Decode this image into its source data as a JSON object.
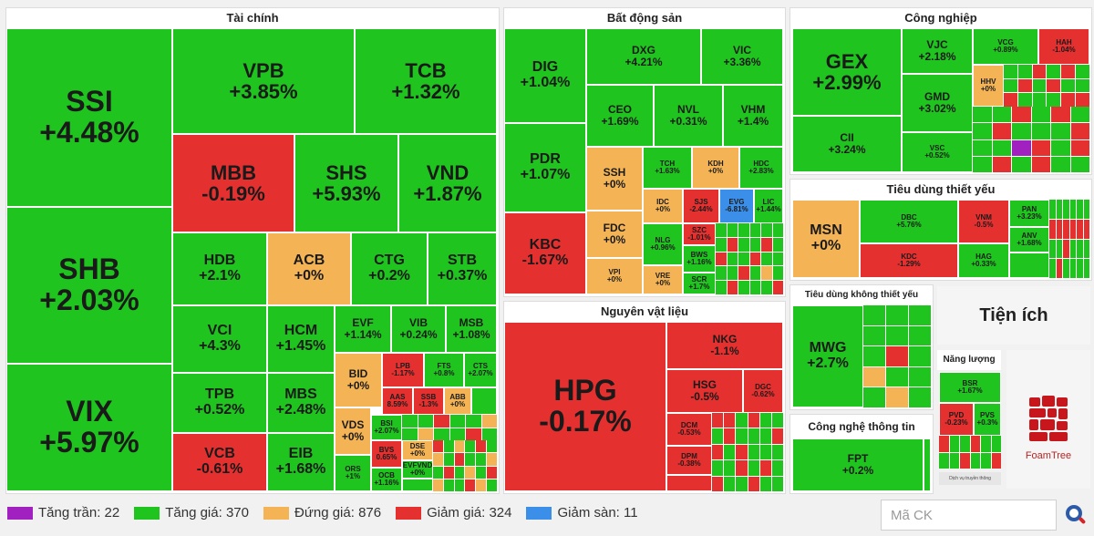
{
  "sectors": {
    "tai_chinh": "Tài chính",
    "bat_dong_san": "Bất động sản",
    "cong_nghiep": "Công nghiệp",
    "tieu_dung_thiet_yeu": "Tiêu dùng thiết yếu",
    "nguyen_vat_lieu": "Nguyên vật liệu",
    "tieu_dung_khong_thiet_yeu": "Tiêu dùng không thiết yếu",
    "cong_nghe_thong_tin": "Công nghệ thông tin",
    "tien_ich": "Tiện ích",
    "nang_luong": "Năng lượng"
  },
  "stocks": {
    "SSI": {
      "t": "SSI",
      "p": "+4.48%"
    },
    "SHB": {
      "t": "SHB",
      "p": "+2.03%"
    },
    "VIX": {
      "t": "VIX",
      "p": "+5.97%"
    },
    "VPB": {
      "t": "VPB",
      "p": "+3.85%"
    },
    "TCB": {
      "t": "TCB",
      "p": "+1.32%"
    },
    "MBB": {
      "t": "MBB",
      "p": "-0.19%"
    },
    "SHS": {
      "t": "SHS",
      "p": "+5.93%"
    },
    "VND": {
      "t": "VND",
      "p": "+1.87%"
    },
    "HDB": {
      "t": "HDB",
      "p": "+2.1%"
    },
    "ACB": {
      "t": "ACB",
      "p": "+0%"
    },
    "CTG": {
      "t": "CTG",
      "p": "+0.2%"
    },
    "STB": {
      "t": "STB",
      "p": "+0.37%"
    },
    "VCI": {
      "t": "VCI",
      "p": "+4.3%"
    },
    "HCM": {
      "t": "HCM",
      "p": "+1.45%"
    },
    "EVF": {
      "t": "EVF",
      "p": "+1.14%"
    },
    "VIB": {
      "t": "VIB",
      "p": "+0.24%"
    },
    "MSB": {
      "t": "MSB",
      "p": "+1.08%"
    },
    "TPB": {
      "t": "TPB",
      "p": "+0.52%"
    },
    "MBS": {
      "t": "MBS",
      "p": "+2.48%"
    },
    "BID": {
      "t": "BID",
      "p": "+0%"
    },
    "LPB": {
      "t": "LPB",
      "p": "-1.17%"
    },
    "FTS": {
      "t": "FTS",
      "p": "+0.8%"
    },
    "CTS": {
      "t": "CTS",
      "p": "+2.07%"
    },
    "VCB": {
      "t": "VCB",
      "p": "-0.61%"
    },
    "EIB": {
      "t": "EIB",
      "p": "+1.68%"
    },
    "VDS": {
      "t": "VDS",
      "p": "+0%"
    },
    "ORS": {
      "t": "ORS",
      "p": "+1%"
    },
    "AAS": {
      "t": "AAS",
      "p": "8.59%"
    },
    "SSB": {
      "t": "SSB",
      "p": "-1.3%"
    },
    "ABB": {
      "t": "ABB",
      "p": "+0%"
    },
    "BSI": {
      "t": "BSI",
      "p": "+2.07%"
    },
    "BVS": {
      "t": "BVS",
      "p": "0.65%"
    },
    "DSE": {
      "t": "DSE",
      "p": "+0%"
    },
    "OCB": {
      "t": "OCB",
      "p": "+1.16%"
    },
    "EVFVND": {
      "t": "EVFVND",
      "p": "+0%"
    },
    "DIG": {
      "t": "DIG",
      "p": "+1.04%"
    },
    "DXG": {
      "t": "DXG",
      "p": "+4.21%"
    },
    "VIC": {
      "t": "VIC",
      "p": "+3.36%"
    },
    "PDR": {
      "t": "PDR",
      "p": "+1.07%"
    },
    "CEO": {
      "t": "CEO",
      "p": "+1.69%"
    },
    "NVL": {
      "t": "NVL",
      "p": "+0.31%"
    },
    "VHM": {
      "t": "VHM",
      "p": "+1.4%"
    },
    "SSH": {
      "t": "SSH",
      "p": "+0%"
    },
    "TCH": {
      "t": "TCH",
      "p": "+1.63%"
    },
    "KDH": {
      "t": "KDH",
      "p": "+0%"
    },
    "HDC": {
      "t": "HDC",
      "p": "+2.83%"
    },
    "KBC": {
      "t": "KBC",
      "p": "-1.67%"
    },
    "FDC": {
      "t": "FDC",
      "p": "+0%"
    },
    "IDC": {
      "t": "IDC",
      "p": "+0%"
    },
    "SJS": {
      "t": "SJS",
      "p": "-2.44%"
    },
    "EVG": {
      "t": "EVG",
      "p": "-6.81%"
    },
    "LIC": {
      "t": "LIC",
      "p": "+1.44%"
    },
    "NLG": {
      "t": "NLG",
      "p": "+0.96%"
    },
    "SZC": {
      "t": "SZC",
      "p": "-1.01%"
    },
    "VPI": {
      "t": "VPI",
      "p": "+0%"
    },
    "VRE": {
      "t": "VRE",
      "p": "+0%"
    },
    "BWS": {
      "t": "BWS",
      "p": "+1.16%"
    },
    "SCR": {
      "t": "SCR",
      "p": "+1.7%"
    },
    "GEX": {
      "t": "GEX",
      "p": "+2.99%"
    },
    "VJC": {
      "t": "VJC",
      "p": "+2.18%"
    },
    "VCG": {
      "t": "VCG",
      "p": "+0.89%"
    },
    "HAH": {
      "t": "HAH",
      "p": "-1.04%"
    },
    "HHV": {
      "t": "HHV",
      "p": "+0%"
    },
    "GMD": {
      "t": "GMD",
      "p": "+3.02%"
    },
    "CII": {
      "t": "CII",
      "p": "+3.24%"
    },
    "VSC": {
      "t": "VSC",
      "p": "+0.52%"
    },
    "MSN": {
      "t": "MSN",
      "p": "+0%"
    },
    "DBC": {
      "t": "DBC",
      "p": "+5.76%"
    },
    "VNM": {
      "t": "VNM",
      "p": "-0.5%"
    },
    "PAN": {
      "t": "PAN",
      "p": "+3.23%"
    },
    "KDC": {
      "t": "KDC",
      "p": "-1.29%"
    },
    "HAG": {
      "t": "HAG",
      "p": "+0.33%"
    },
    "ANV": {
      "t": "ANV",
      "p": "+1.68%"
    },
    "HPG": {
      "t": "HPG",
      "p": "-0.17%"
    },
    "NKG": {
      "t": "NKG",
      "p": "-1.1%"
    },
    "HSG": {
      "t": "HSG",
      "p": "-0.5%"
    },
    "DGC": {
      "t": "DGC",
      "p": "-0.62%"
    },
    "DCM": {
      "t": "DCM",
      "p": "-0.53%"
    },
    "DPM": {
      "t": "DPM",
      "p": "-0.38%"
    },
    "MWG": {
      "t": "MWG",
      "p": "+2.7%"
    },
    "FPT": {
      "t": "FPT",
      "p": "+0.2%"
    },
    "BSR": {
      "t": "BSR",
      "p": "+1.67%"
    },
    "PVD": {
      "t": "PVD",
      "p": "-0.23%"
    },
    "PVS": {
      "t": "PVS",
      "p": "+0.3%"
    }
  },
  "extras": {
    "foamtree": "FoamTree",
    "dich_vu_truyen_thong": "Dịch vụ truyền thông"
  },
  "legend": {
    "ceiling": "Tăng trần: 22",
    "up": "Tăng giá: 370",
    "flat": "Đứng giá: 876",
    "down": "Giảm giá: 324",
    "floor": "Giảm sàn: 11"
  },
  "colors": {
    "ceiling": "#a020c0",
    "up": "#1fc41f",
    "flat": "#f4b455",
    "down": "#e53030",
    "floor": "#3b8fe8"
  },
  "search": {
    "placeholder": "Mã CK"
  }
}
